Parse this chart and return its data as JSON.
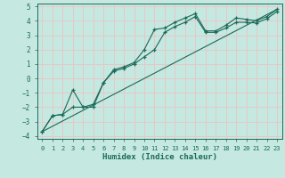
{
  "title": "",
  "xlabel": "Humidex (Indice chaleur)",
  "ylabel": "",
  "xlim": [
    -0.5,
    23.5
  ],
  "ylim": [
    -4.2,
    5.2
  ],
  "xticks": [
    0,
    1,
    2,
    3,
    4,
    5,
    6,
    7,
    8,
    9,
    10,
    11,
    12,
    13,
    14,
    15,
    16,
    17,
    18,
    19,
    20,
    21,
    22,
    23
  ],
  "yticks": [
    -4,
    -3,
    -2,
    -1,
    0,
    1,
    2,
    3,
    4,
    5
  ],
  "bg_color": "#c5e8e0",
  "grid_color": "#e8c8c8",
  "line_color": "#1a6b5a",
  "line1_x": [
    0,
    1,
    2,
    3,
    4,
    5,
    6,
    7,
    8,
    9,
    10,
    11,
    12,
    13,
    14,
    15,
    16,
    17,
    18,
    19,
    20,
    21,
    22,
    23
  ],
  "line1_y": [
    -3.7,
    -2.6,
    -2.5,
    -0.8,
    -2.0,
    -1.8,
    -0.3,
    0.6,
    0.8,
    1.1,
    2.0,
    3.4,
    3.5,
    3.9,
    4.2,
    4.5,
    3.3,
    3.3,
    3.7,
    4.2,
    4.1,
    4.0,
    4.3,
    4.8
  ],
  "line2_x": [
    0,
    1,
    2,
    3,
    4,
    5,
    6,
    7,
    8,
    9,
    10,
    11,
    12,
    13,
    14,
    15,
    16,
    17,
    18,
    19,
    20,
    21,
    22,
    23
  ],
  "line2_y": [
    -3.7,
    -2.6,
    -2.5,
    -2.0,
    -2.0,
    -2.0,
    -0.3,
    0.5,
    0.7,
    1.0,
    1.5,
    2.0,
    3.2,
    3.6,
    3.9,
    4.3,
    3.2,
    3.2,
    3.5,
    3.9,
    3.9,
    3.85,
    4.15,
    4.65
  ],
  "line3_x": [
    0,
    23
  ],
  "line3_y": [
    -3.7,
    4.8
  ]
}
